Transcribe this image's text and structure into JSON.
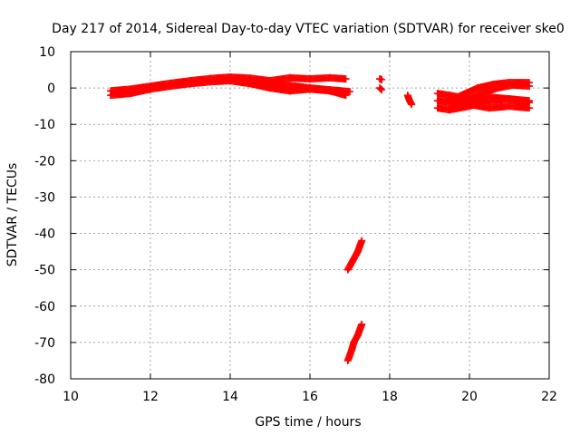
{
  "chart_data": {
    "type": "scatter",
    "title": "Day 217 of 2014, Sidereal Day-to-day VTEC variation (SDTVAR) for receiver ske0",
    "xlabel": "GPS time / hours",
    "ylabel": "SDTVAR / TECUs",
    "xlim": [
      10,
      22
    ],
    "ylim": [
      -80,
      10
    ],
    "xticks": [
      10,
      12,
      14,
      16,
      18,
      20,
      22
    ],
    "yticks": [
      10,
      0,
      -10,
      -20,
      -30,
      -40,
      -50,
      -60,
      -70,
      -80
    ],
    "grid": true,
    "marker": "+",
    "series": [
      {
        "name": "SDTVAR",
        "color": "#ff0000",
        "segments": [
          {
            "label": "main band upper",
            "points": [
              [
                11.0,
                -0.8
              ],
              [
                11.5,
                -0.3
              ],
              [
                12.0,
                0.5
              ],
              [
                12.5,
                1.3
              ],
              [
                13.0,
                2.0
              ],
              [
                13.5,
                2.6
              ],
              [
                14.0,
                3.0
              ],
              [
                14.5,
                2.7
              ],
              [
                15.0,
                2.0
              ],
              [
                15.5,
                2.8
              ],
              [
                16.0,
                2.5
              ],
              [
                16.5,
                2.8
              ],
              [
                16.9,
                2.5
              ]
            ]
          },
          {
            "label": "main band lower",
            "points": [
              [
                11.0,
                -2.0
              ],
              [
                11.5,
                -1.5
              ],
              [
                12.0,
                -0.3
              ],
              [
                12.5,
                0.5
              ],
              [
                13.0,
                1.2
              ],
              [
                13.5,
                1.7
              ],
              [
                14.0,
                2.0
              ],
              [
                14.5,
                1.2
              ],
              [
                15.0,
                0.0
              ],
              [
                15.5,
                -0.8
              ],
              [
                16.0,
                -0.3
              ],
              [
                16.5,
                -0.8
              ],
              [
                16.9,
                -2.0
              ]
            ]
          },
          {
            "label": "mid band",
            "points": [
              [
                14.6,
                2.0
              ],
              [
                15.0,
                1.3
              ],
              [
                15.5,
                0.7
              ],
              [
                16.0,
                0.0
              ],
              [
                16.5,
                -0.5
              ],
              [
                17.0,
                -1.0
              ]
            ]
          },
          {
            "label": "short segment a",
            "points": [
              [
                17.75,
                2.5
              ],
              [
                17.8,
                2.3
              ]
            ]
          },
          {
            "label": "short segment b",
            "points": [
              [
                17.75,
                0.0
              ],
              [
                17.8,
                -0.5
              ]
            ]
          },
          {
            "label": "short segment c",
            "points": [
              [
                18.45,
                -2.0
              ],
              [
                18.5,
                -3.5
              ],
              [
                18.55,
                -4.5
              ]
            ]
          },
          {
            "label": "spike upper",
            "points": [
              [
                16.95,
                -50
              ],
              [
                17.05,
                -48
              ],
              [
                17.1,
                -47
              ],
              [
                17.2,
                -45
              ],
              [
                17.3,
                -42
              ]
            ]
          },
          {
            "label": "spike lower",
            "points": [
              [
                16.95,
                -75
              ],
              [
                17.05,
                -72
              ],
              [
                17.1,
                -70
              ],
              [
                17.2,
                -68
              ],
              [
                17.3,
                -65
              ]
            ]
          },
          {
            "label": "late band 1",
            "points": [
              [
                19.2,
                -3.5
              ],
              [
                19.5,
                -4.0
              ],
              [
                20.0,
                -4.5
              ],
              [
                20.5,
                -5.5
              ],
              [
                21.0,
                -5.0
              ],
              [
                21.5,
                -5.5
              ]
            ]
          },
          {
            "label": "late band 2",
            "points": [
              [
                19.2,
                -5.5
              ],
              [
                19.5,
                -6.0
              ],
              [
                20.0,
                -5.0
              ],
              [
                20.5,
                -3.5
              ],
              [
                21.0,
                -3.0
              ],
              [
                21.5,
                -4.0
              ]
            ]
          },
          {
            "label": "late band 3",
            "points": [
              [
                19.2,
                -1.5
              ],
              [
                19.5,
                -2.0
              ],
              [
                20.0,
                -3.0
              ],
              [
                20.5,
                -2.5
              ],
              [
                21.0,
                -3.0
              ],
              [
                21.5,
                -3.5
              ]
            ]
          },
          {
            "label": "late band 4",
            "points": [
              [
                19.4,
                -4.0
              ],
              [
                19.8,
                -2.0
              ],
              [
                20.2,
                0.0
              ],
              [
                20.6,
                1.0
              ],
              [
                21.0,
                1.5
              ],
              [
                21.5,
                1.5
              ]
            ]
          },
          {
            "label": "late band 5",
            "points": [
              [
                19.5,
                -6.0
              ],
              [
                19.9,
                -3.5
              ],
              [
                20.3,
                -1.5
              ],
              [
                20.7,
                0.0
              ],
              [
                21.1,
                0.8
              ],
              [
                21.5,
                0.5
              ]
            ]
          }
        ]
      }
    ]
  }
}
